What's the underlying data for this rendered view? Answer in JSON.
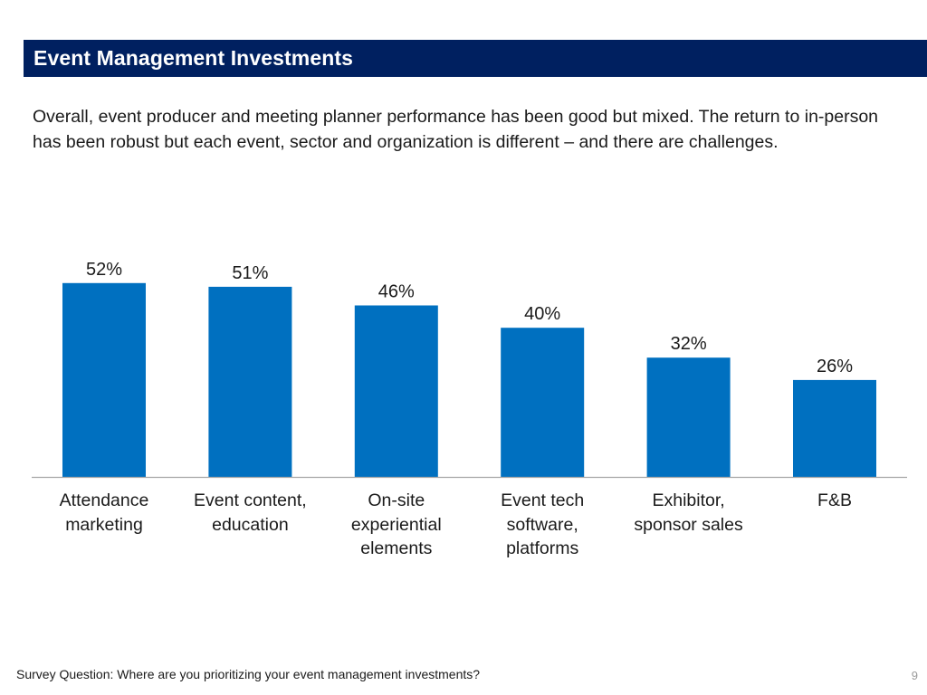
{
  "header": {
    "title": "Event Management Investments"
  },
  "intro": {
    "text": "Overall, event producer and meeting planner performance has been good but mixed. The return to in-person has been robust but each event, sector and organization is different – and there are challenges."
  },
  "colors": {
    "title_bar": "#002060",
    "bar": "#0070C0",
    "axis": "#a6a6a6"
  },
  "chart_data": {
    "type": "bar",
    "title": "",
    "xlabel": "",
    "ylabel": "",
    "ylim": [
      0,
      100
    ],
    "grid": false,
    "categories": [
      "Attendance\nmarketing",
      "Event content,\neducation",
      "On-site\nexperiential\nelements",
      "Event tech\nsoftware,\nplatforms",
      "Exhibitor,\nsponsor sales",
      "F&B"
    ],
    "values": [
      52,
      51,
      46,
      40,
      32,
      26
    ],
    "data_labels": [
      "52%",
      "51%",
      "46%",
      "40%",
      "32%",
      "26%"
    ]
  },
  "footer": {
    "survey_question": "Survey Question: Where are you prioritizing your event management investments?",
    "page_number": "9"
  }
}
